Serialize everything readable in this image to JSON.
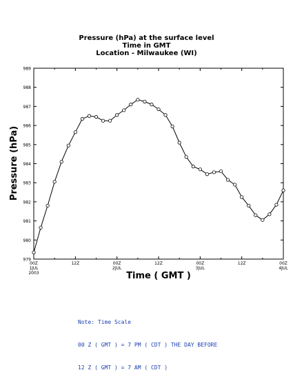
{
  "chart_data": {
    "type": "line",
    "title_lines": [
      "Pressure (hPa) at the surface level",
      "Time in GMT",
      "Location - Milwaukee (WI)"
    ],
    "xlabel": "Time ( GMT )",
    "ylabel": "Pressure (hPa)",
    "ylim": [
      979,
      989
    ],
    "xlim": [
      0,
      72
    ],
    "y_ticks": [
      979,
      980,
      981,
      982,
      983,
      984,
      985,
      986,
      987,
      988,
      989
    ],
    "y_tick_labels": [
      "979",
      "980",
      "981",
      "982",
      "983",
      "984",
      "985",
      "986",
      "987",
      "988",
      "989"
    ],
    "x_ticks": [
      {
        "x": 0,
        "lines": [
          "00Z",
          "1JUL",
          "2003"
        ]
      },
      {
        "x": 12,
        "lines": [
          "12Z"
        ]
      },
      {
        "x": 24,
        "lines": [
          "00Z",
          "2JUL"
        ]
      },
      {
        "x": 36,
        "lines": [
          "12Z"
        ]
      },
      {
        "x": 48,
        "lines": [
          "00Z",
          "3JUL"
        ]
      },
      {
        "x": 60,
        "lines": [
          "12Z"
        ]
      },
      {
        "x": 72,
        "lines": [
          "00Z",
          "4JUL"
        ]
      }
    ],
    "x_unit": "hours since 00Z 1 JUL 2003",
    "x": [
      0,
      2,
      4,
      6,
      8,
      10,
      12,
      14,
      16,
      18,
      20,
      22,
      24,
      26,
      28,
      30,
      32,
      34,
      36,
      38,
      40,
      42,
      44,
      46,
      48,
      50,
      52,
      54,
      56,
      58,
      60,
      62,
      64,
      66,
      68,
      70,
      72
    ],
    "values": [
      979.35,
      980.65,
      981.8,
      983.05,
      984.1,
      984.95,
      985.65,
      986.35,
      986.5,
      986.45,
      986.25,
      986.25,
      986.55,
      986.8,
      987.1,
      987.35,
      987.25,
      987.1,
      986.85,
      986.55,
      985.95,
      985.1,
      984.35,
      983.85,
      983.7,
      983.45,
      983.55,
      983.6,
      983.15,
      982.9,
      982.25,
      981.8,
      981.3,
      981.05,
      981.35,
      981.85,
      982.6
    ],
    "grid": false,
    "line_color": "#000000",
    "marker": "open-circle"
  },
  "note": {
    "lines": [
      "Note: Time Scale",
      "00 Z ( GMT ) = 7 PM ( CDT ) THE DAY BEFORE",
      "12 Z ( GMT ) = 7 AM ( CDT )"
    ],
    "color": "#1a3fb0"
  }
}
